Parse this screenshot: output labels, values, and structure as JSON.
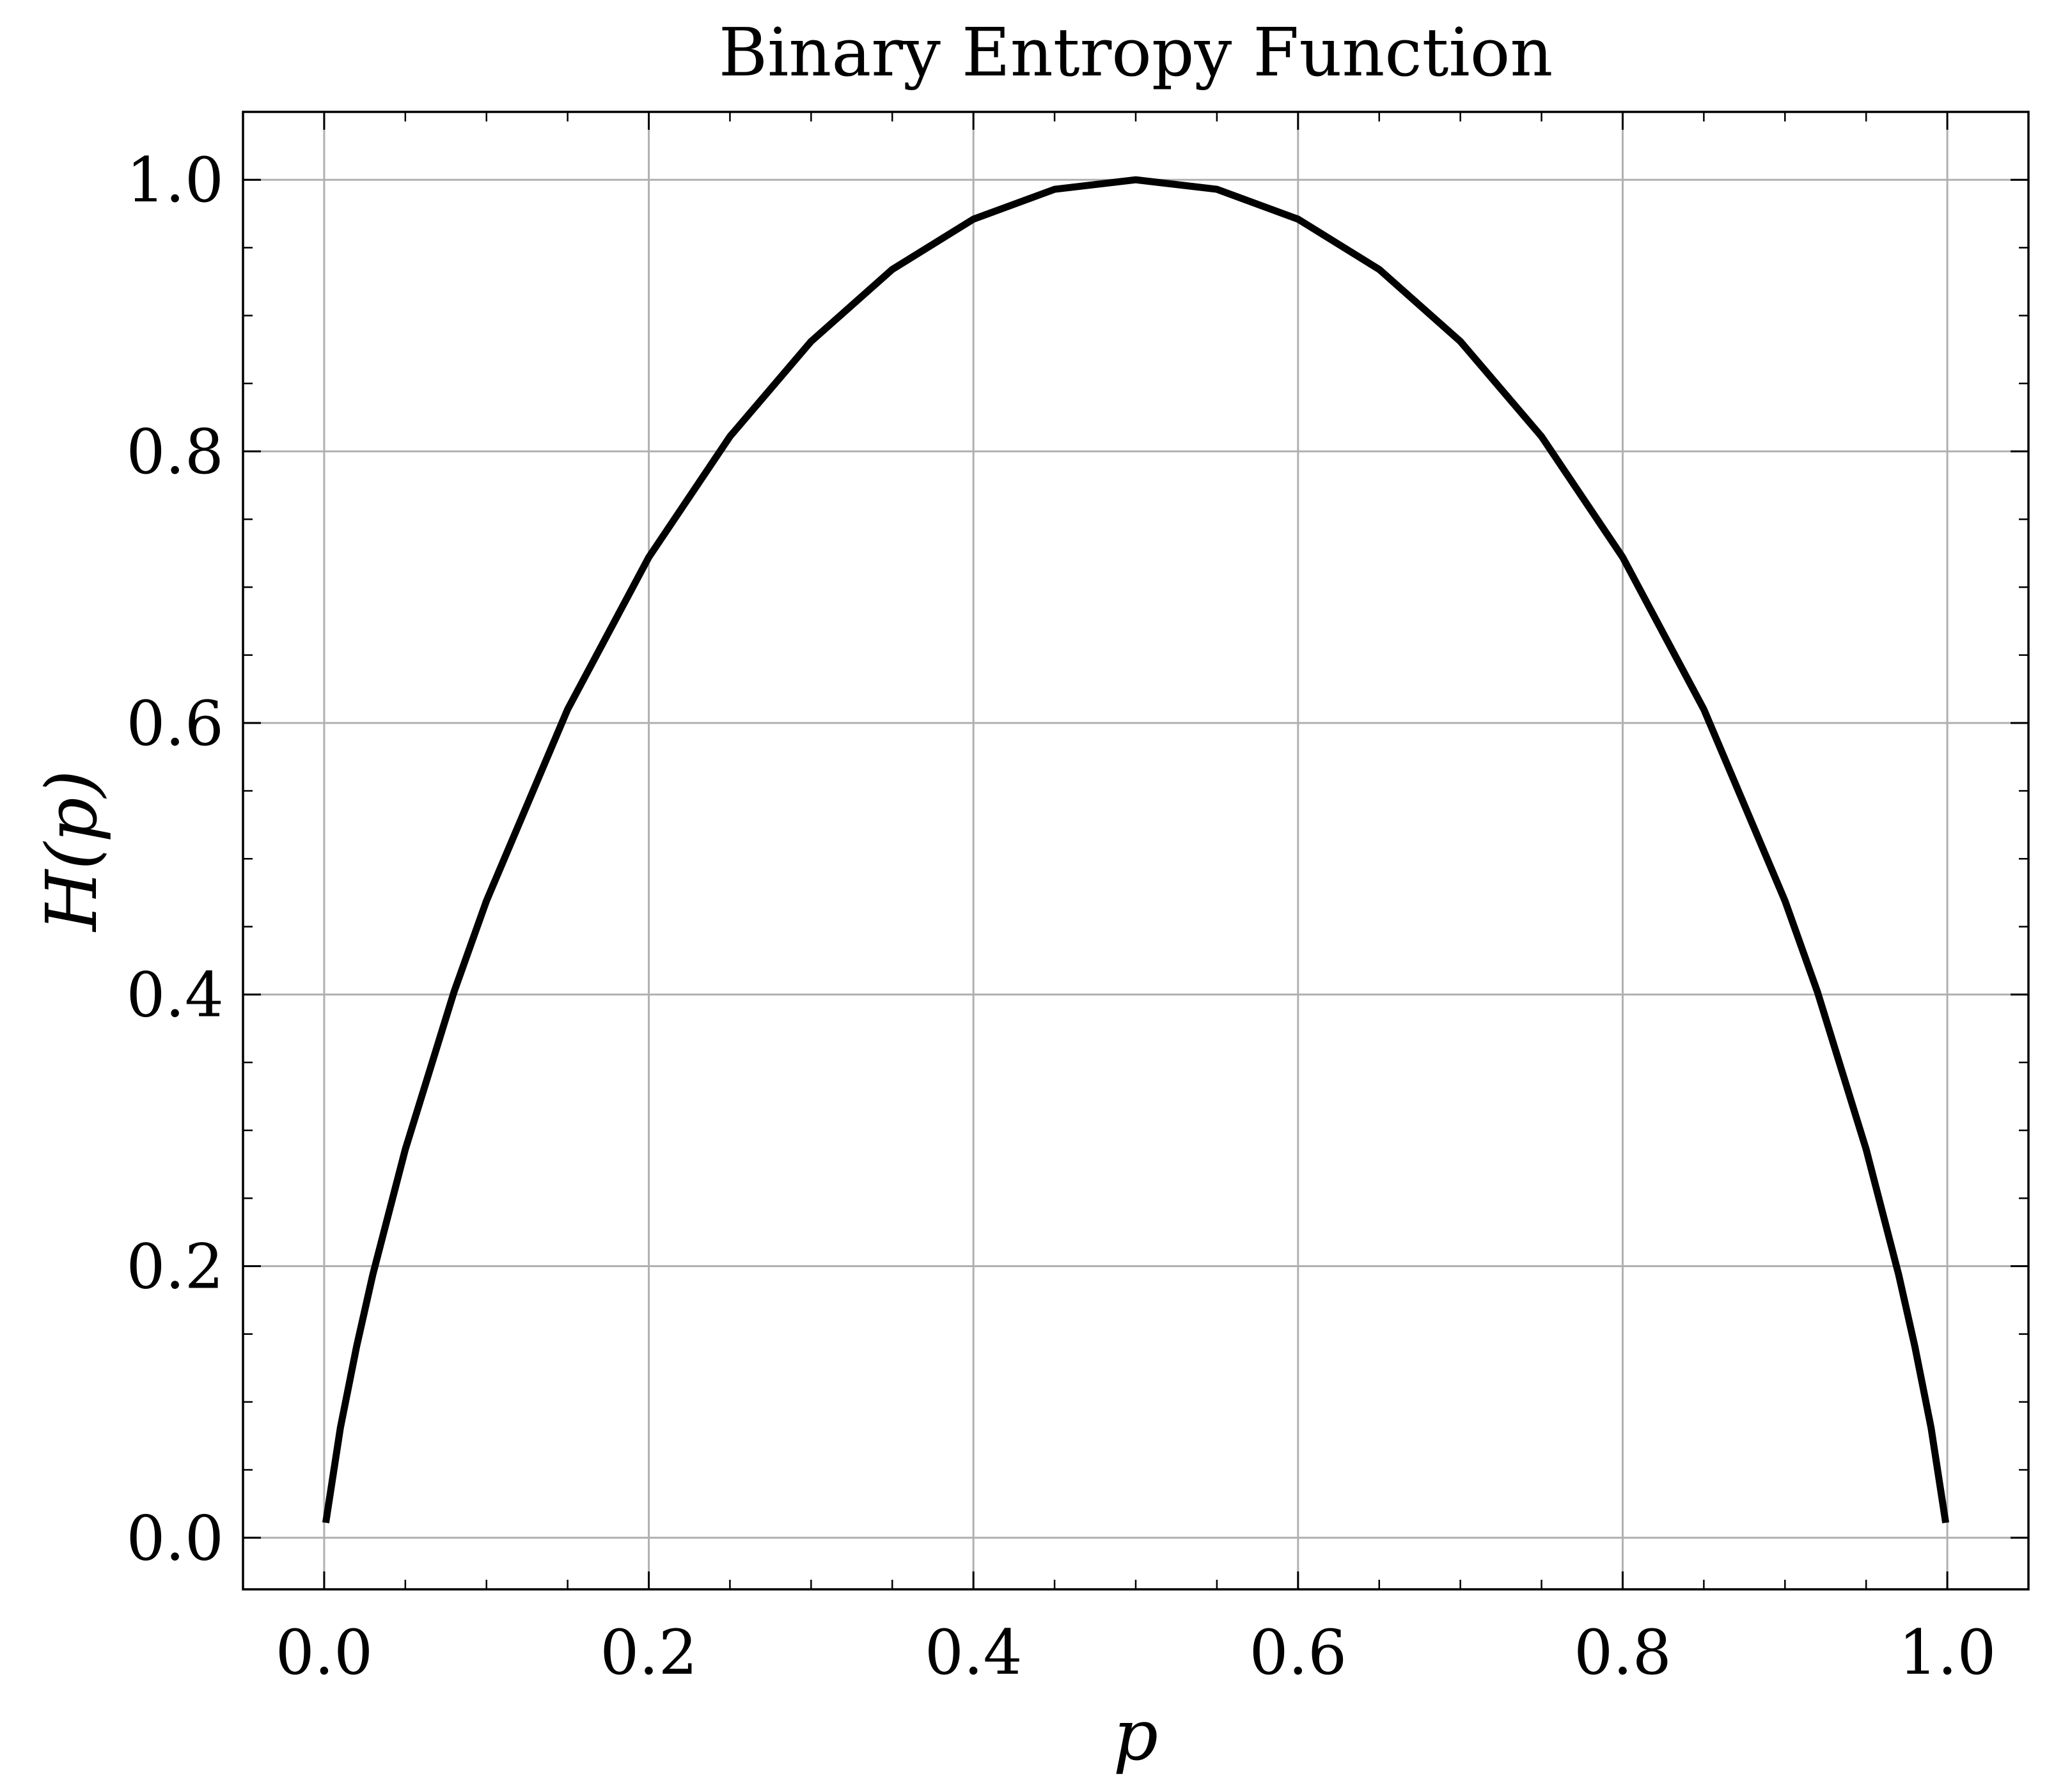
{
  "chart_data": {
    "type": "line",
    "title": "Binary Entropy Function",
    "xlabel": "p",
    "ylabel": "H(p)",
    "xlim": [
      -0.05,
      1.05
    ],
    "ylim": [
      -0.038,
      1.05
    ],
    "xticks": [
      0.0,
      0.2,
      0.4,
      0.6,
      0.8,
      1.0
    ],
    "xtick_labels": [
      "0.0",
      "0.2",
      "0.4",
      "0.6",
      "0.8",
      "1.0"
    ],
    "yticks": [
      0.0,
      0.2,
      0.4,
      0.6,
      0.8,
      1.0
    ],
    "ytick_labels": [
      "0.0",
      "0.2",
      "0.4",
      "0.6",
      "0.8",
      "1.0"
    ],
    "x_minor_step": 0.05,
    "y_minor_step": 0.05,
    "grid": true,
    "legend": "none",
    "series": [
      {
        "color": "#000000",
        "x": [
          0.001,
          0.01,
          0.02,
          0.03,
          0.05,
          0.08,
          0.1,
          0.15,
          0.2,
          0.25,
          0.3,
          0.35,
          0.4,
          0.45,
          0.5,
          0.55,
          0.6,
          0.65,
          0.7,
          0.75,
          0.8,
          0.85,
          0.9,
          0.92,
          0.95,
          0.97,
          0.98,
          0.99,
          0.999
        ],
        "y": [
          0.011,
          0.081,
          0.141,
          0.194,
          0.286,
          0.402,
          0.469,
          0.61,
          0.722,
          0.811,
          0.881,
          0.934,
          0.971,
          0.993,
          1.0,
          0.993,
          0.971,
          0.934,
          0.881,
          0.811,
          0.722,
          0.61,
          0.469,
          0.402,
          0.286,
          0.194,
          0.141,
          0.081,
          0.011
        ]
      }
    ]
  }
}
